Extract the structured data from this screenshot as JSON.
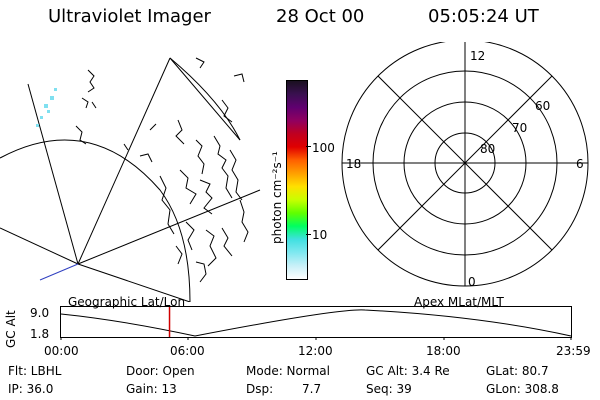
{
  "header": {
    "title": "Ultraviolet Imager",
    "date": "28 Oct 00",
    "time": "05:05:24 UT"
  },
  "colorbar": {
    "unit_label": "photon cm⁻²s⁻¹",
    "ticks": [
      "100",
      "10"
    ],
    "colors": [
      "#1a1020",
      "#3a1050",
      "#600070",
      "#900060",
      "#c00020",
      "#e00000",
      "#ff6000",
      "#ffa000",
      "#ffe000",
      "#c8ff00",
      "#60ff00",
      "#00ff60",
      "#40e0e0",
      "#80e8f0",
      "#c8f0f8",
      "#ffffff"
    ]
  },
  "polar": {
    "labels": {
      "top": "12",
      "bottom": "0",
      "left": "18",
      "right": "6",
      "lat60": "60",
      "lat70": "70",
      "lat80": "80"
    }
  },
  "timeline": {
    "ylabel": "GC Alt",
    "ytick_high": "9.0",
    "ytick_low": "1.8",
    "left_title": "Geographic Lat/Lon",
    "right_title": "Apex MLat/MLT",
    "xticks": [
      "00:00",
      "06:00",
      "12:00",
      "18:00",
      "23:59"
    ],
    "current_time_fraction": 0.2128,
    "marker_color": "#d00000"
  },
  "info": {
    "flt": "Flt: LBHL",
    "ip": "IP: 36.0",
    "door": "Door: Open",
    "gain": "Gain: 13",
    "mode": "Mode: Normal",
    "dsp_label": "Dsp:",
    "dsp_value": "7.7",
    "gcalt": "GC Alt: 3.4 Re",
    "seq": "Seq: 39",
    "glat": "GLat: 80.7",
    "glon": "GLon: 308.8"
  }
}
